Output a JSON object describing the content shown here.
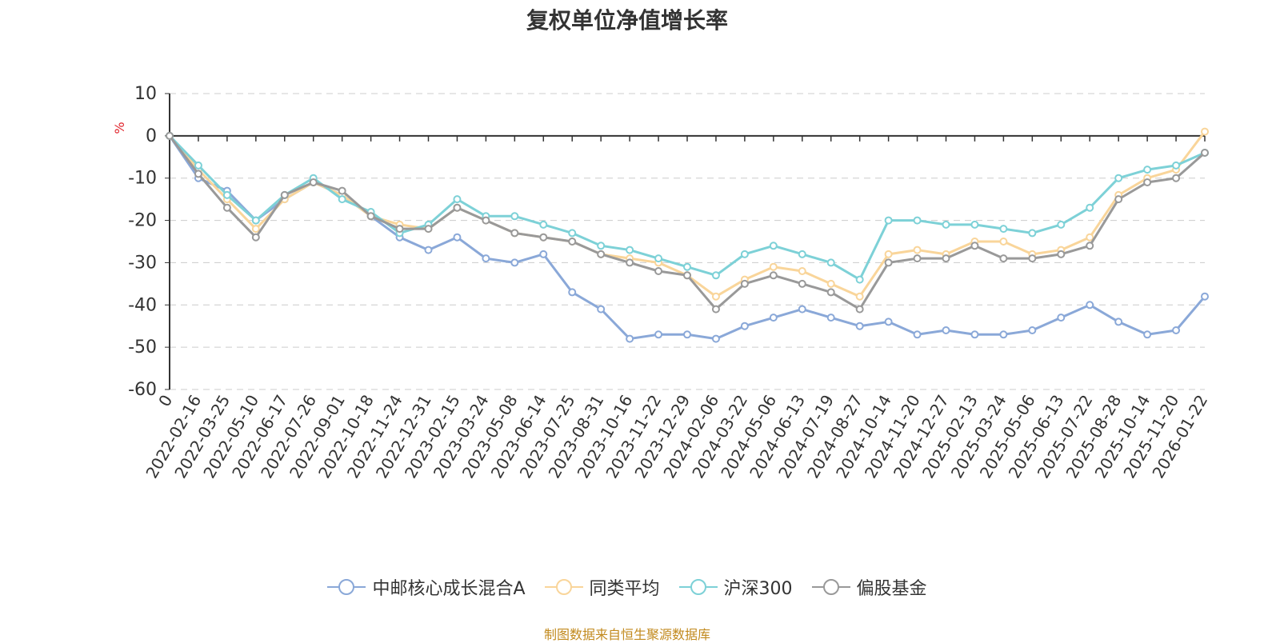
{
  "chart_data": {
    "type": "line",
    "title": "复权单位净值增长率",
    "ylabel": "%",
    "source_note": "制图数据来自恒生聚源数据库",
    "ylim": [
      -60,
      10
    ],
    "yticks": [
      10,
      0,
      -10,
      -20,
      -30,
      -40,
      -50,
      -60
    ],
    "grid": true,
    "legend_position": "bottom",
    "x_tick_labels": [
      "0",
      "2022-02-16",
      "2022-03-25",
      "2022-05-10",
      "2022-06-17",
      "2022-07-26",
      "2022-09-01",
      "2022-10-18",
      "2022-11-24",
      "2022-12-31",
      "2023-02-15",
      "2023-03-24",
      "2023-05-08",
      "2023-06-14",
      "2023-07-25",
      "2023-08-31",
      "2023-10-16",
      "2023-11-22",
      "2023-12-29",
      "2024-02-06",
      "2024-03-22",
      "2024-05-06",
      "2024-06-13",
      "2024-07-19",
      "2024-08-27",
      "2024-10-14",
      "2024-11-20",
      "2024-12-27",
      "2025-02-13",
      "2025-03-24",
      "2025-05-06",
      "2025-06-13",
      "2025-07-22",
      "2025-08-28",
      "2025-10-14",
      "2025-11-20",
      "2026-01-22"
    ],
    "x": [
      "0",
      "2022-02-16",
      "2022-03-25",
      "2022-05-10",
      "2022-06-17",
      "2022-07-26",
      "2022-09-01",
      "2022-10-18",
      "2022-11-24",
      "2022-12-31",
      "2023-02-15",
      "2023-03-24",
      "2023-05-08",
      "2023-06-14",
      "2023-07-25",
      "2023-08-31",
      "2023-10-16",
      "2023-11-22",
      "2023-12-29",
      "2024-02-06",
      "2024-03-22",
      "2024-05-06",
      "2024-06-13",
      "2024-07-19",
      "2024-08-27",
      "2024-10-14",
      "2024-11-20",
      "2024-12-27",
      "2025-02-13",
      "2025-03-24",
      "2025-05-06",
      "2025-06-13",
      "2025-07-22",
      "2025-08-28",
      "2025-10-14",
      "2025-11-20",
      "2026-01-22"
    ],
    "series": [
      {
        "name": "中邮核心成长混合A",
        "color": "#8aa8d8",
        "values": [
          0,
          -10,
          -13,
          -20,
          -15,
          -11,
          -14,
          -19,
          -24,
          -27,
          -24,
          -29,
          -30,
          -28,
          -37,
          -41,
          -48,
          -47,
          -47,
          -48,
          -45,
          -43,
          -41,
          -43,
          -45,
          -44,
          -47,
          -46,
          -47,
          -47,
          -46,
          -43,
          -40,
          -44,
          -47,
          -46,
          -38
        ]
      },
      {
        "name": "同类平均",
        "color": "#f9d59a",
        "values": [
          0,
          -8,
          -15,
          -22,
          -15,
          -11,
          -14,
          -19,
          -21,
          -22,
          -17,
          -20,
          -23,
          -24,
          -25,
          -28,
          -29,
          -30,
          -33,
          -38,
          -34,
          -31,
          -32,
          -35,
          -38,
          -28,
          -27,
          -28,
          -25,
          -25,
          -28,
          -27,
          -24,
          -14,
          -10,
          -8,
          1
        ]
      },
      {
        "name": "沪深300",
        "color": "#7dd1d7",
        "values": [
          0,
          -7,
          -14,
          -20,
          -14,
          -10,
          -15,
          -18,
          -23,
          -21,
          -15,
          -19,
          -19,
          -21,
          -23,
          -26,
          -27,
          -29,
          -31,
          -33,
          -28,
          -26,
          -28,
          -30,
          -34,
          -20,
          -20,
          -21,
          -21,
          -22,
          -23,
          -21,
          -17,
          -10,
          -8,
          -7,
          -4
        ]
      },
      {
        "name": "偏股基金",
        "color": "#999999",
        "values": [
          0,
          -9,
          -17,
          -24,
          -14,
          -11,
          -13,
          -19,
          -22,
          -22,
          -17,
          -20,
          -23,
          -24,
          -25,
          -28,
          -30,
          -32,
          -33,
          -41,
          -35,
          -33,
          -35,
          -37,
          -41,
          -30,
          -29,
          -29,
          -26,
          -29,
          -29,
          -28,
          -26,
          -15,
          -11,
          -10,
          -4
        ]
      }
    ]
  }
}
